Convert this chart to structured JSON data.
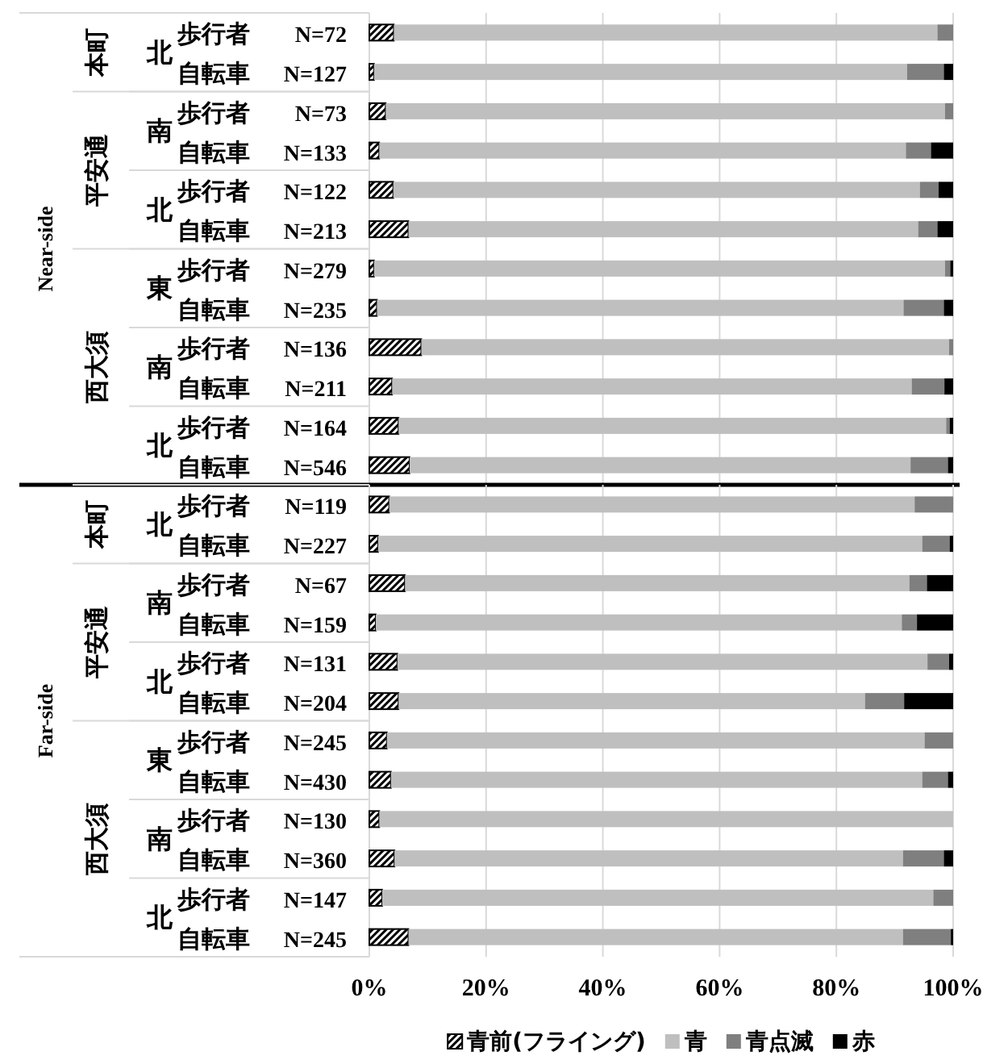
{
  "chart_data": [
    {
      "type": "bar",
      "orientation": "horizontal",
      "stacked": true,
      "categories": [
        "歩行者 N=72",
        "自転車 N=127",
        "歩行者 N=73",
        "自転車 N=133",
        "歩行者 N=122",
        "自転車 N=213",
        "歩行者 N=279",
        "自転車 N=235",
        "歩行者 N=136",
        "自転車 N=211",
        "歩行者 N=164",
        "自転車 N=546"
      ],
      "series": [
        {
          "color": "#000000",
          "values": [
            4.2,
            0.8,
            2.8,
            1.7,
            4.1,
            6.7,
            0.8,
            1.3,
            8.9,
            3.9,
            5.0,
            6.9
          ]
        },
        {
          "color": "#bfbfbf",
          "values": [
            93.1,
            91.3,
            95.8,
            90.2,
            90.2,
            87.3,
            97.8,
            90.2,
            90.4,
            89.0,
            93.8,
            85.8
          ]
        },
        {
          "color": "#7f7f7f",
          "values": [
            2.7,
            6.3,
            1.4,
            4.3,
            3.2,
            3.3,
            0.9,
            6.9,
            0.7,
            5.6,
            0.6,
            6.4
          ]
        },
        {
          "color": "#000000",
          "values": [
            0,
            1.6,
            0,
            3.8,
            2.5,
            2.7,
            0.5,
            1.6,
            0,
            1.5,
            0.6,
            0.9
          ]
        }
      ],
      "xlim": [
        0,
        100
      ],
      "xticks": [
        {
          "value": 0,
          "label": null
        },
        {
          "value": 20,
          "label": null
        },
        {
          "value": 40,
          "label": null
        },
        {
          "value": 60,
          "label": null
        },
        {
          "value": 80,
          "label": null
        },
        {
          "value": 100,
          "label": null
        }
      ],
      "tick_labels": "y",
      "grid": "x",
      "annotations": [
        "Near-side",
        "本町",
        "北",
        "平安通",
        "南",
        "北",
        "西大須",
        "東",
        "南",
        "北"
      ]
    },
    {
      "type": "bar",
      "orientation": "horizontal",
      "stacked": true,
      "categories": [
        "歩行者 N=119",
        "自転車 N=227",
        "歩行者 N=67",
        "自転車 N=159",
        "歩行者 N=131",
        "自転車 N=204",
        "歩行者 N=245",
        "自転車 N=430",
        "歩行者 N=130",
        "自転車 N=360",
        "歩行者 N=147",
        "自転車 N=245"
      ],
      "series": [
        {
          "name": "青前(フライング)",
          "color": "#000000",
          "values": [
            3.4,
            1.5,
            6.1,
            1.1,
            4.8,
            5.0,
            3.0,
            3.7,
            1.7,
            4.3,
            2.2,
            6.7
          ]
        },
        {
          "name": "青",
          "color": "#bfbfbf",
          "values": [
            90.0,
            93.2,
            86.4,
            90.1,
            90.8,
            79.9,
            92.1,
            91.0,
            98.3,
            87.1,
            94.4,
            84.7
          ]
        },
        {
          "name": "青点滅",
          "color": "#7f7f7f",
          "values": [
            6.6,
            4.7,
            3.0,
            2.6,
            3.7,
            6.7,
            4.9,
            4.4,
            0,
            7.0,
            3.4,
            8.2
          ]
        },
        {
          "name": "赤",
          "color": "#000000",
          "values": [
            0,
            0.6,
            4.5,
            6.2,
            0.7,
            8.4,
            0,
            0.9,
            0,
            1.6,
            0,
            0.4
          ]
        }
      ],
      "xlim": [
        0,
        100
      ],
      "xticks": [
        {
          "value": 0,
          "label": "0%"
        },
        {
          "value": 20,
          "label": "20%"
        },
        {
          "value": 40,
          "label": "40%"
        },
        {
          "value": 60,
          "label": "60%"
        },
        {
          "value": 80,
          "label": "80%"
        },
        {
          "value": 100,
          "label": "100%"
        }
      ],
      "grid": "x",
      "legend": "bottom",
      "annotations": [
        "Far-side",
        "本町",
        "北",
        "平安通",
        "南",
        "北",
        "西大須",
        "東",
        "南",
        "北"
      ]
    }
  ]
}
